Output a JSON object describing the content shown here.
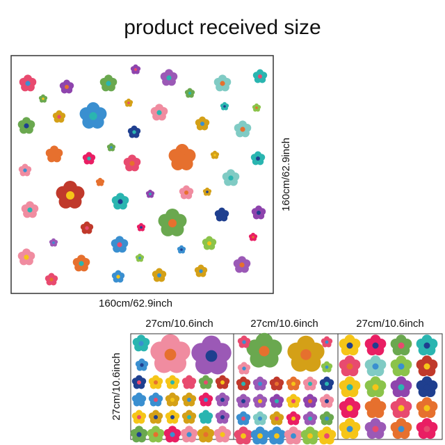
{
  "title": "product received size",
  "main_sheet": {
    "width_label": "160cm/62.9inch",
    "height_label": "160cm/62.9inch"
  },
  "small_sheets": {
    "labels": [
      "27cm/10.6inch",
      "27cm/10.6inch",
      "27cm/10.6inch"
    ],
    "height_label": "27cm/10.6inch"
  }
}
